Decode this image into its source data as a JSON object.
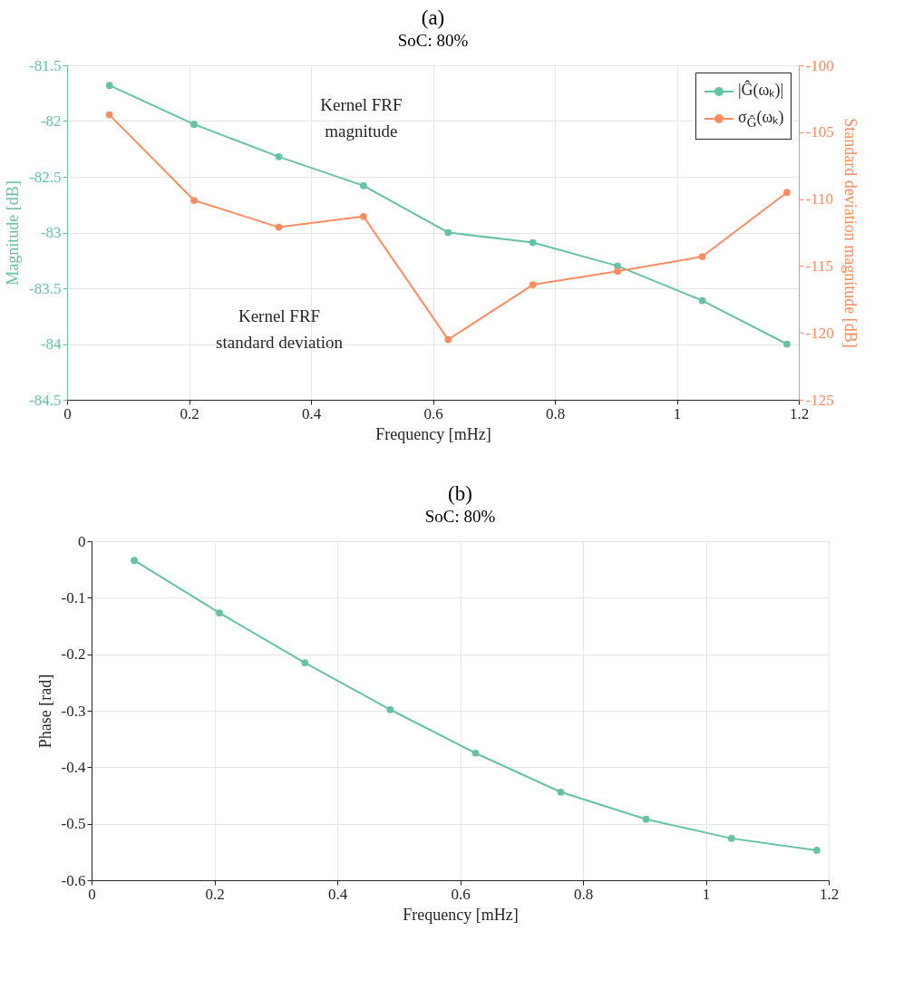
{
  "chart_data": [
    {
      "type": "line",
      "title": "(a)",
      "subtitle": "SoC: 80%",
      "xlabel": "Frequency [mHz]",
      "ylabel": "Magnitude [dB]",
      "y2label": "Standard deviation magnitude [dB]",
      "x": [
        0.0694,
        0.2083,
        0.3472,
        0.4861,
        0.625,
        0.7639,
        0.9028,
        1.0417,
        1.1806
      ],
      "series": [
        {
          "name": "|Ĝ(ωₖ)|",
          "color": "#66c2a5",
          "values": [
            -81.68,
            -82.03,
            -82.32,
            -82.58,
            -83.0,
            -83.09,
            -83.3,
            -83.61,
            -84.0
          ]
        },
        {
          "name": "σ$_{Ĝ}$(ωₖ)",
          "color": "#fc8d62",
          "axis": "y2",
          "values": [
            -103.7,
            -110.1,
            -112.1,
            -111.3,
            -120.5,
            -116.4,
            -115.4,
            -114.3,
            -109.5
          ]
        }
      ],
      "xlim": [
        0,
        1.2
      ],
      "xticks": [
        0,
        0.2,
        0.4,
        0.6,
        0.8,
        1,
        1.2
      ],
      "ylim": [
        -84.5,
        -81.5
      ],
      "yticks": [
        -84.5,
        -84,
        -83.5,
        -83,
        -82.5,
        -82,
        -81.5
      ],
      "y2lim": [
        -125,
        -100
      ],
      "y2ticks": [
        -125,
        -120,
        -115,
        -110,
        -105,
        -100
      ],
      "annotations": [
        "Kernel FRF\nmagnitude",
        "Kernel FRF\nstandard deviation"
      ],
      "grid": true,
      "legend": "top right",
      "marker": "circle",
      "line_style": "solid"
    },
    {
      "type": "line",
      "title": "(b)",
      "subtitle": "SoC: 80%",
      "xlabel": "Frequency [mHz]",
      "ylabel": "Phase [rad]",
      "x": [
        0.0694,
        0.2083,
        0.3472,
        0.4861,
        0.625,
        0.7639,
        0.9028,
        1.0417,
        1.1806
      ],
      "series": [
        {
          "color": "#66c2a5",
          "values": [
            -0.034,
            -0.127,
            -0.215,
            -0.298,
            -0.375,
            -0.444,
            -0.492,
            -0.526,
            -0.547
          ]
        }
      ],
      "xlim": [
        0,
        1.2
      ],
      "xticks": [
        0,
        0.2,
        0.4,
        0.6,
        0.8,
        1,
        1.2
      ],
      "ylim": [
        -0.6,
        0
      ],
      "yticks": [
        -0.6,
        -0.5,
        -0.4,
        -0.3,
        -0.2,
        -0.1,
        {
          "value": 0,
          "label": "0"
        }
      ],
      "grid": true,
      "marker": "circle",
      "line_style": "solid"
    }
  ]
}
